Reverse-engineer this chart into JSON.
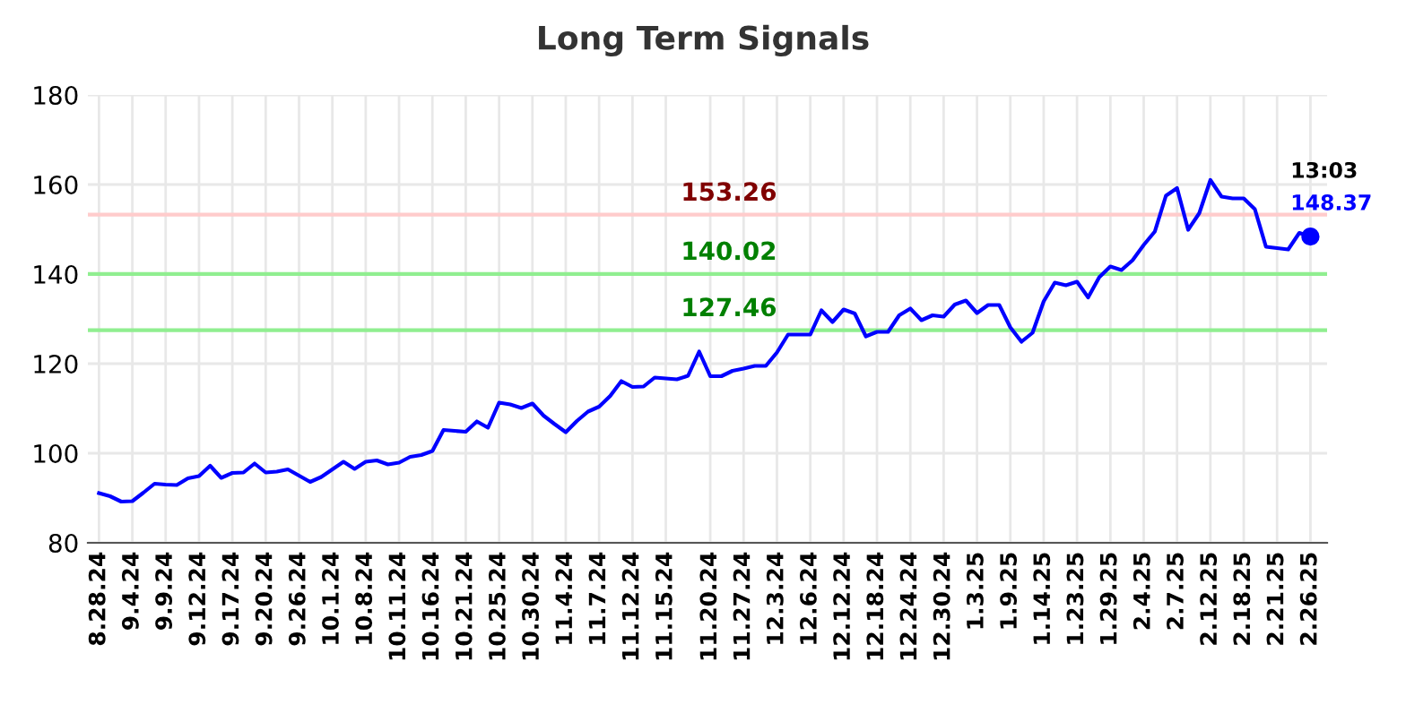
{
  "chart_data": {
    "type": "line",
    "title": "Long Term Signals",
    "categories": [
      "8.28.24",
      null,
      null,
      "9.4.24",
      null,
      null,
      "9.9.24",
      null,
      null,
      "9.12.24",
      null,
      null,
      "9.17.24",
      null,
      null,
      "9.20.24",
      null,
      null,
      "9.26.24",
      null,
      null,
      "10.1.24",
      null,
      null,
      "10.8.24",
      null,
      null,
      "10.11.24",
      null,
      null,
      "10.16.24",
      null,
      null,
      "10.21.24",
      null,
      null,
      "10.25.24",
      null,
      null,
      "10.30.24",
      null,
      null,
      "11.4.24",
      null,
      null,
      "11.7.24",
      null,
      null,
      "11.12.24",
      null,
      null,
      "11.15.24",
      null,
      null,
      null,
      "11.20.24",
      null,
      null,
      "11.27.24",
      null,
      null,
      "12.3.24",
      null,
      null,
      "12.6.24",
      null,
      null,
      "12.12.24",
      null,
      null,
      "12.18.24",
      null,
      null,
      "12.24.24",
      null,
      null,
      "12.30.24",
      null,
      null,
      "1.3.25",
      null,
      null,
      "1.9.25",
      null,
      null,
      "1.14.25",
      null,
      null,
      "1.23.25",
      null,
      null,
      "1.29.25",
      null,
      null,
      "2.4.25",
      null,
      null,
      "2.7.25",
      null,
      null,
      "2.12.25",
      null,
      null,
      "2.18.25",
      null,
      null,
      "2.21.25",
      null,
      null,
      "2.26.25"
    ],
    "series": [
      {
        "color": "#0000ff",
        "values": [
          91.1,
          90.4,
          89.2,
          89.3,
          91.2,
          93.2,
          93.0,
          92.9,
          94.4,
          94.9,
          97.2,
          94.5,
          95.6,
          95.7,
          97.7,
          95.7,
          95.9,
          96.4,
          95.0,
          93.6,
          94.7,
          96.4,
          98.1,
          96.5,
          98.1,
          98.4,
          97.5,
          97.9,
          99.2,
          99.6,
          100.5,
          105.2,
          105.0,
          104.8,
          107.1,
          105.7,
          111.3,
          110.9,
          110.1,
          111.1,
          108.4,
          106.5,
          104.7,
          107.2,
          109.3,
          110.4,
          112.8,
          116.1,
          114.8,
          114.9,
          116.9,
          116.7,
          116.5,
          117.3,
          122.7,
          117.2,
          117.2,
          118.4,
          118.9,
          119.5,
          119.5,
          122.5,
          126.5,
          126.5,
          126.5,
          131.9,
          129.3,
          132.1,
          131.2,
          126.1,
          127.1,
          127.1,
          130.8,
          132.3,
          129.7,
          130.8,
          130.5,
          133.2,
          134.1,
          131.3,
          133.1,
          133.1,
          128.1,
          124.9,
          126.9,
          133.9,
          138.1,
          137.5,
          138.3,
          134.8,
          139.3,
          141.7,
          140.9,
          143.1,
          146.5,
          149.5,
          157.5,
          159.2,
          149.9,
          153.6,
          161.0,
          157.3,
          156.9,
          156.9,
          154.5,
          146.1,
          145.8,
          145.5,
          149.2,
          148.37
        ]
      },
      {
        "type": "scatter",
        "marker": "circle",
        "color": "#0000ff",
        "x": [
          "2.26.25"
        ],
        "values": [
          148.37
        ]
      }
    ],
    "ylim": [
      80,
      180
    ],
    "yticks": [
      80,
      100,
      120,
      140,
      160,
      180
    ],
    "grid": true,
    "marker": "none",
    "line_style": "solid",
    "ref_lines": [
      {
        "axis": "y",
        "value": 153.26,
        "label": "153.26",
        "color": "#ffcccc"
      },
      {
        "axis": "y",
        "value": 140.02,
        "label": "140.02",
        "color": "#90ee90"
      },
      {
        "axis": "y",
        "value": 127.46,
        "label": "127.46",
        "color": "#90ee90"
      }
    ],
    "annotations": [
      {
        "text": "13:03",
        "x": "2.26.25",
        "y": 148.37
      },
      {
        "text": "148.37",
        "x": "2.26.25",
        "y": 148.37
      }
    ]
  }
}
